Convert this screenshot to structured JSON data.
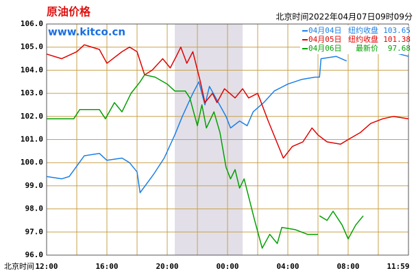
{
  "chart_data": {
    "type": "line",
    "title": "原油价格",
    "subtitle": "www.kitco.cn",
    "timestamp": "北京时间2022年04月07日09时09分",
    "x_label": "北京时间",
    "xlim": [
      0,
      24
    ],
    "xticks": [
      {
        "value": 0,
        "label": "12:00"
      },
      {
        "value": 4,
        "label": "16:00"
      },
      {
        "value": 8,
        "label": "20:00"
      },
      {
        "value": 12,
        "label": "00:00"
      },
      {
        "value": 16,
        "label": "04:00"
      },
      {
        "value": 20,
        "label": "08:00"
      },
      {
        "value": 24,
        "label": "11:59"
      }
    ],
    "x_minor_ticks": [
      2,
      6,
      10,
      14,
      18,
      22
    ],
    "shaded_x": [
      8.5,
      13
    ],
    "ylim": [
      96,
      106
    ],
    "yticks": [
      {
        "value": 96,
        "label": "96.0"
      },
      {
        "value": 97,
        "label": "97.0"
      },
      {
        "value": 98,
        "label": "98.0"
      },
      {
        "value": 99,
        "label": "99.0"
      },
      {
        "value": 100,
        "label": "100.0"
      },
      {
        "value": 101,
        "label": "101.0"
      },
      {
        "value": 102,
        "label": "102.0"
      },
      {
        "value": 103,
        "label": "103.0"
      },
      {
        "value": 104,
        "label": "104.0"
      },
      {
        "value": 105,
        "label": "105.0"
      },
      {
        "value": 106,
        "label": "106.0"
      }
    ],
    "grid": true,
    "series": [
      {
        "name": "04月04日",
        "note": "纽约收盘",
        "last": 103.65,
        "color": "#1a7fe8",
        "x": [
          0,
          1,
          1.5,
          2.5,
          3.5,
          4,
          5,
          5.5,
          6,
          6.2,
          7.1,
          7.8,
          8.5,
          9,
          9.7,
          10.1,
          10.5,
          10.8,
          11.9,
          12.2,
          12.8,
          13.3,
          13.7,
          14.4,
          15.1,
          16,
          16.9,
          17.8,
          18.1,
          18.2,
          19.2,
          19.9,
          20,
          22.8,
          24
        ],
        "values": [
          99.4,
          99.3,
          99.4,
          100.3,
          100.4,
          100.1,
          100.2,
          100.0,
          99.6,
          98.7,
          99.5,
          100.2,
          101.2,
          102.0,
          103.0,
          103.5,
          102.5,
          103.3,
          102.0,
          101.5,
          101.8,
          101.6,
          102.2,
          102.6,
          103.1,
          103.4,
          103.6,
          103.7,
          103.7,
          104.5,
          104.6,
          104.4,
          null,
          104.8,
          104.6
        ]
      },
      {
        "name": "04月05日",
        "note": "纽约收盘",
        "last": 101.38,
        "color": "#e00000",
        "x": [
          0,
          1,
          2,
          2.5,
          3.5,
          4,
          5,
          5.5,
          6,
          6.5,
          7,
          7.7,
          8.2,
          8.6,
          8.9,
          9.3,
          9.7,
          10.2,
          10.5,
          11,
          11.3,
          11.8,
          12.5,
          13,
          13.4,
          14,
          14.7,
          15.2,
          15.7,
          16.3,
          17,
          17.6,
          18,
          18.6,
          19.5,
          20,
          20.8,
          21.5,
          22.3,
          23,
          24
        ],
        "values": [
          104.7,
          104.5,
          104.8,
          105.1,
          104.9,
          104.3,
          104.8,
          105.0,
          104.8,
          103.8,
          104.0,
          104.5,
          104.1,
          104.6,
          105.0,
          104.3,
          104.8,
          103.5,
          102.6,
          103.0,
          102.6,
          103.2,
          102.8,
          103.2,
          102.8,
          103.0,
          101.8,
          101.0,
          100.2,
          100.7,
          100.9,
          101.5,
          101.2,
          100.9,
          100.8,
          101.0,
          101.3,
          101.7,
          101.9,
          102.0,
          101.9
        ]
      },
      {
        "name": "04月06日",
        "note": "最新价",
        "last": 97.68,
        "color": "#00a000",
        "x": [
          0,
          1,
          1.8,
          2.2,
          3.5,
          3.9,
          4.5,
          5,
          5.6,
          6.2,
          6.5,
          7.2,
          8,
          8.5,
          9.2,
          9.5,
          10,
          10.3,
          10.6,
          11.1,
          11.5,
          11.9,
          12.2,
          12.5,
          12.8,
          13.1,
          13.8,
          14.3,
          14.8,
          15.3,
          15.6,
          16.5,
          17.3,
          18,
          18.05,
          18.1,
          18.6,
          19,
          19.6,
          20,
          20.5,
          21
        ],
        "values": [
          101.9,
          101.9,
          101.9,
          102.3,
          102.3,
          101.9,
          102.6,
          102.2,
          103.0,
          103.5,
          103.8,
          103.7,
          103.4,
          103.1,
          103.1,
          102.8,
          101.6,
          102.5,
          101.5,
          102.2,
          101.3,
          99.8,
          99.3,
          99.7,
          98.9,
          99.3,
          97.5,
          96.3,
          96.9,
          96.5,
          97.2,
          97.1,
          96.9,
          96.9,
          null,
          97.7,
          97.5,
          97.9,
          97.3,
          96.7,
          97.3,
          97.7
        ]
      }
    ]
  }
}
